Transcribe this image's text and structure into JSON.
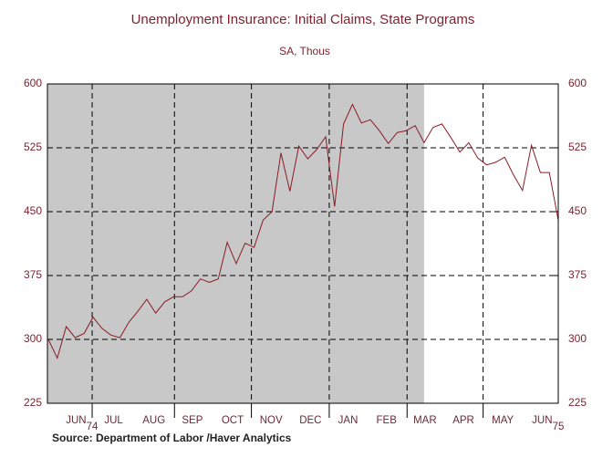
{
  "chart_data": {
    "type": "line",
    "title": "Unemployment Insurance: Initial Claims, State Programs",
    "subtitle": "SA, Thous",
    "source": "Source:  Department of Labor /Haver Analytics",
    "color": "#8b1a24",
    "values": [
      300,
      278,
      315,
      302,
      307,
      326,
      313,
      305,
      302,
      320,
      333,
      347,
      331,
      344,
      350,
      350,
      357,
      371,
      367,
      371,
      414,
      389,
      413,
      408,
      440,
      450,
      519,
      474,
      527,
      512,
      523,
      538,
      456,
      553,
      576,
      554,
      558,
      545,
      530,
      543,
      545,
      551,
      531,
      549,
      553,
      537,
      520,
      531,
      513,
      505,
      508,
      514,
      493,
      475,
      528,
      496,
      496,
      440
    ],
    "xlim": [
      -0.1,
      57
    ],
    "xticks": [
      {
        "value": 3.1,
        "label": "JUN"
      },
      {
        "value": 7.3,
        "label": "JUL"
      },
      {
        "value": 11.8,
        "label": "AUG"
      },
      {
        "value": 16.1,
        "label": "SEP"
      },
      {
        "value": 20.6,
        "label": "OCT"
      },
      {
        "value": 24.9,
        "label": "NOV"
      },
      {
        "value": 29.3,
        "label": "DEC"
      },
      {
        "value": 33.5,
        "label": "JAN"
      },
      {
        "value": 37.8,
        "label": "FEB"
      },
      {
        "value": 42.1,
        "label": "MAR"
      },
      {
        "value": 46.4,
        "label": "APR"
      },
      {
        "value": 50.8,
        "label": "MAY"
      },
      {
        "value": 55.2,
        "label": "JUN"
      }
    ],
    "xgrid": [
      4.9,
      14.1,
      22.7,
      31.4,
      40.1,
      48.6
    ],
    "years": [
      {
        "value": 4.9,
        "label": "74"
      },
      {
        "value": 57,
        "label": "75"
      }
    ],
    "shade": [
      -0.1,
      42.0
    ],
    "ylim": [
      225,
      600
    ],
    "yticks": [
      225,
      300,
      375,
      450,
      525,
      600
    ],
    "y2lim": [
      225,
      600
    ],
    "y2ticks": [
      225,
      300,
      375,
      450,
      525,
      600
    ],
    "grid": true
  }
}
